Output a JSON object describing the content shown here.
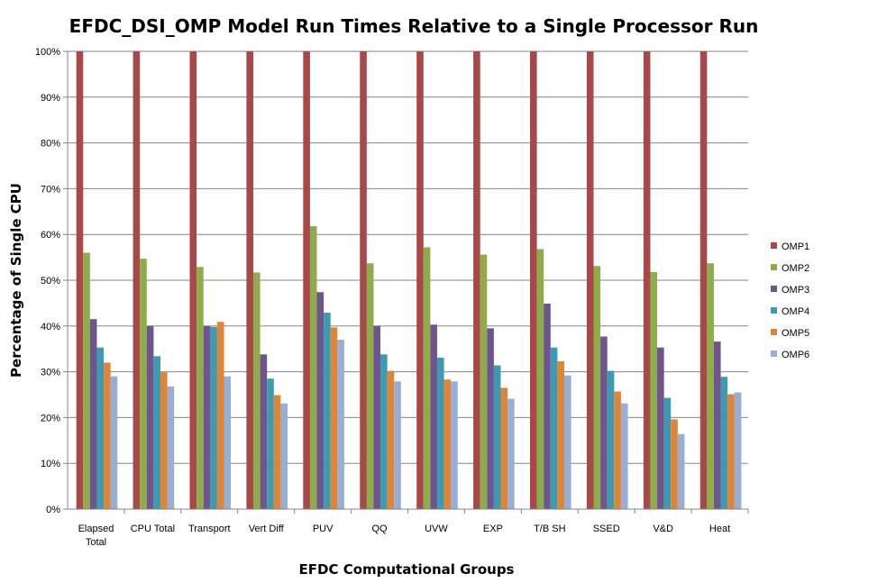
{
  "chart_data": {
    "type": "bar",
    "title": "EFDC_DSI_OMP Model Run Times Relative to a Single Processor Run",
    "xlabel": "EFDC Computational Groups",
    "ylabel": "Percentage of Single CPU",
    "ylim": [
      0,
      100
    ],
    "yticks": [
      "0%",
      "10%",
      "20%",
      "30%",
      "40%",
      "50%",
      "60%",
      "70%",
      "80%",
      "90%",
      "100%"
    ],
    "grid": true,
    "legend_position": "right",
    "categories": [
      [
        "Elapsed",
        "Total"
      ],
      [
        "CPU Total"
      ],
      [
        "Transport"
      ],
      [
        "Vert Diff"
      ],
      [
        "PUV"
      ],
      [
        "QQ"
      ],
      [
        "UVW"
      ],
      [
        "EXP"
      ],
      [
        "T/B SH"
      ],
      [
        "SSED"
      ],
      [
        "V&D"
      ],
      [
        "Heat"
      ]
    ],
    "series": [
      {
        "name": "OMP1",
        "color": "#A84848",
        "values": [
          100,
          100,
          100,
          100,
          100,
          100,
          100,
          100,
          100,
          100,
          100,
          100
        ]
      },
      {
        "name": "OMP2",
        "color": "#8DAD4B",
        "values": [
          56,
          54.7,
          52.9,
          51.7,
          61.8,
          53.7,
          57.2,
          55.6,
          56.8,
          53.1,
          51.8,
          53.7
        ]
      },
      {
        "name": "OMP3",
        "color": "#6F548F",
        "values": [
          41.5,
          40,
          40,
          33.8,
          47.4,
          40,
          40.3,
          39.5,
          44.9,
          37.7,
          35.3,
          36.6
        ]
      },
      {
        "name": "OMP4",
        "color": "#3D9AB0",
        "values": [
          35.3,
          33.4,
          39.8,
          28.5,
          42.9,
          33.8,
          33.1,
          31.4,
          35.3,
          30.2,
          24.3,
          28.9
        ]
      },
      {
        "name": "OMP5",
        "color": "#E08535",
        "values": [
          32,
          29.9,
          40.9,
          24.9,
          39.7,
          30.2,
          28.3,
          26.5,
          32.3,
          25.7,
          19.6,
          25.1
        ]
      },
      {
        "name": "OMP6",
        "color": "#98AED5",
        "values": [
          29,
          26.8,
          29,
          23.1,
          37,
          27.9,
          27.9,
          24.1,
          29.2,
          23.1,
          16.4,
          25.5
        ]
      }
    ]
  }
}
